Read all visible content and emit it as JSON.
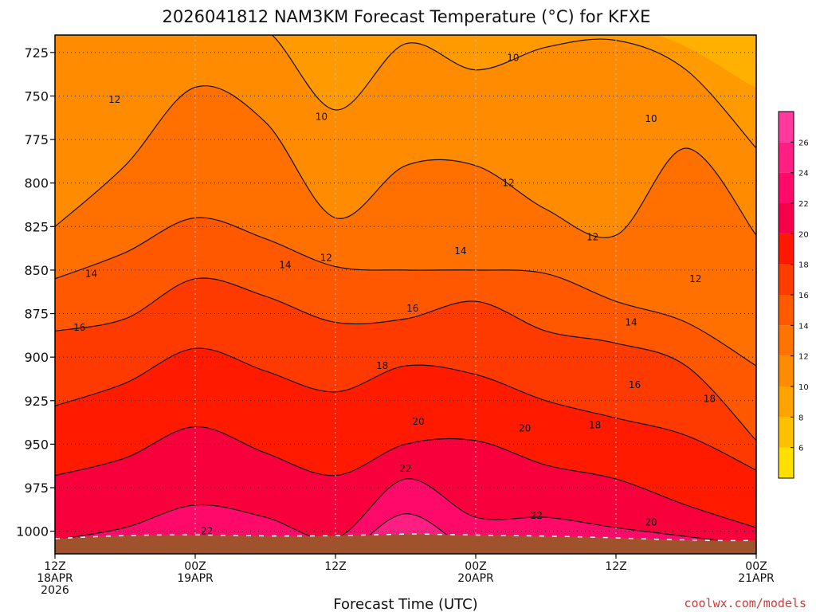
{
  "chart_data": {
    "type": "heatmap",
    "title": "2026041812 NAM3KM Forecast Temperature (°C) for KFXE",
    "xlabel": "Forecast Time (UTC)",
    "ylabel": "",
    "credit": "coolwx.com/models",
    "y_axis": {
      "inverted": true,
      "range": [
        715,
        1013
      ],
      "ticks": [
        725,
        750,
        775,
        800,
        825,
        850,
        875,
        900,
        925,
        950,
        975,
        1000
      ]
    },
    "x_axis": {
      "range_hours": [
        0,
        60
      ],
      "ticks": [
        {
          "hour": 0,
          "lines": [
            "12Z",
            "18APR",
            "2026"
          ]
        },
        {
          "hour": 12,
          "lines": [
            "00Z",
            "19APR"
          ]
        },
        {
          "hour": 24,
          "lines": [
            "12Z"
          ]
        },
        {
          "hour": 36,
          "lines": [
            "00Z",
            "20APR"
          ]
        },
        {
          "hour": 48,
          "lines": [
            "12Z"
          ]
        },
        {
          "hour": 60,
          "lines": [
            "00Z",
            "21APR"
          ]
        }
      ]
    },
    "colorbar": {
      "levels": [
        4,
        6,
        8,
        10,
        12,
        14,
        16,
        18,
        20,
        22,
        24,
        26,
        28
      ],
      "tick_labels": [
        "6",
        "8",
        "10",
        "12",
        "14",
        "16",
        "18",
        "20",
        "22",
        "24",
        "26"
      ],
      "colors": [
        "#ffe000",
        "#ffc000",
        "#ffa300",
        "#ff8c00",
        "#ff7400",
        "#ff5a00",
        "#ff3c00",
        "#ff1800",
        "#f5004a",
        "#ff0a6a",
        "#ff1e82",
        "#ff3a9c"
      ]
    },
    "contour_interval": 2,
    "contour_labels": [
      {
        "value": "10",
        "hour": 39.2,
        "p": 728
      },
      {
        "value": "12",
        "hour": 5.1,
        "p": 752
      },
      {
        "value": "10",
        "hour": 22.8,
        "p": 762
      },
      {
        "value": "10",
        "hour": 51.0,
        "p": 763
      },
      {
        "value": "12",
        "hour": 38.8,
        "p": 800
      },
      {
        "value": "12",
        "hour": 23.2,
        "p": 843
      },
      {
        "value": "12",
        "hour": 46.0,
        "p": 831
      },
      {
        "value": "14",
        "hour": 3.1,
        "p": 852
      },
      {
        "value": "14",
        "hour": 19.7,
        "p": 847
      },
      {
        "value": "14",
        "hour": 34.7,
        "p": 839
      },
      {
        "value": "12",
        "hour": 54.8,
        "p": 855
      },
      {
        "value": "16",
        "hour": 30.6,
        "p": 872
      },
      {
        "value": "14",
        "hour": 49.3,
        "p": 880
      },
      {
        "value": "16",
        "hour": 2.1,
        "p": 883
      },
      {
        "value": "18",
        "hour": 28.0,
        "p": 905
      },
      {
        "value": "16",
        "hour": 49.6,
        "p": 916
      },
      {
        "value": "18",
        "hour": 56.0,
        "p": 924
      },
      {
        "value": "20",
        "hour": 31.1,
        "p": 937
      },
      {
        "value": "20",
        "hour": 40.2,
        "p": 941
      },
      {
        "value": "18",
        "hour": 46.2,
        "p": 939
      },
      {
        "value": "22",
        "hour": 30.0,
        "p": 964
      },
      {
        "value": "22",
        "hour": 41.2,
        "p": 991
      },
      {
        "value": "22",
        "hour": 13.0,
        "p": 1000
      },
      {
        "value": "20",
        "hour": 51.0,
        "p": 995
      }
    ]
  }
}
